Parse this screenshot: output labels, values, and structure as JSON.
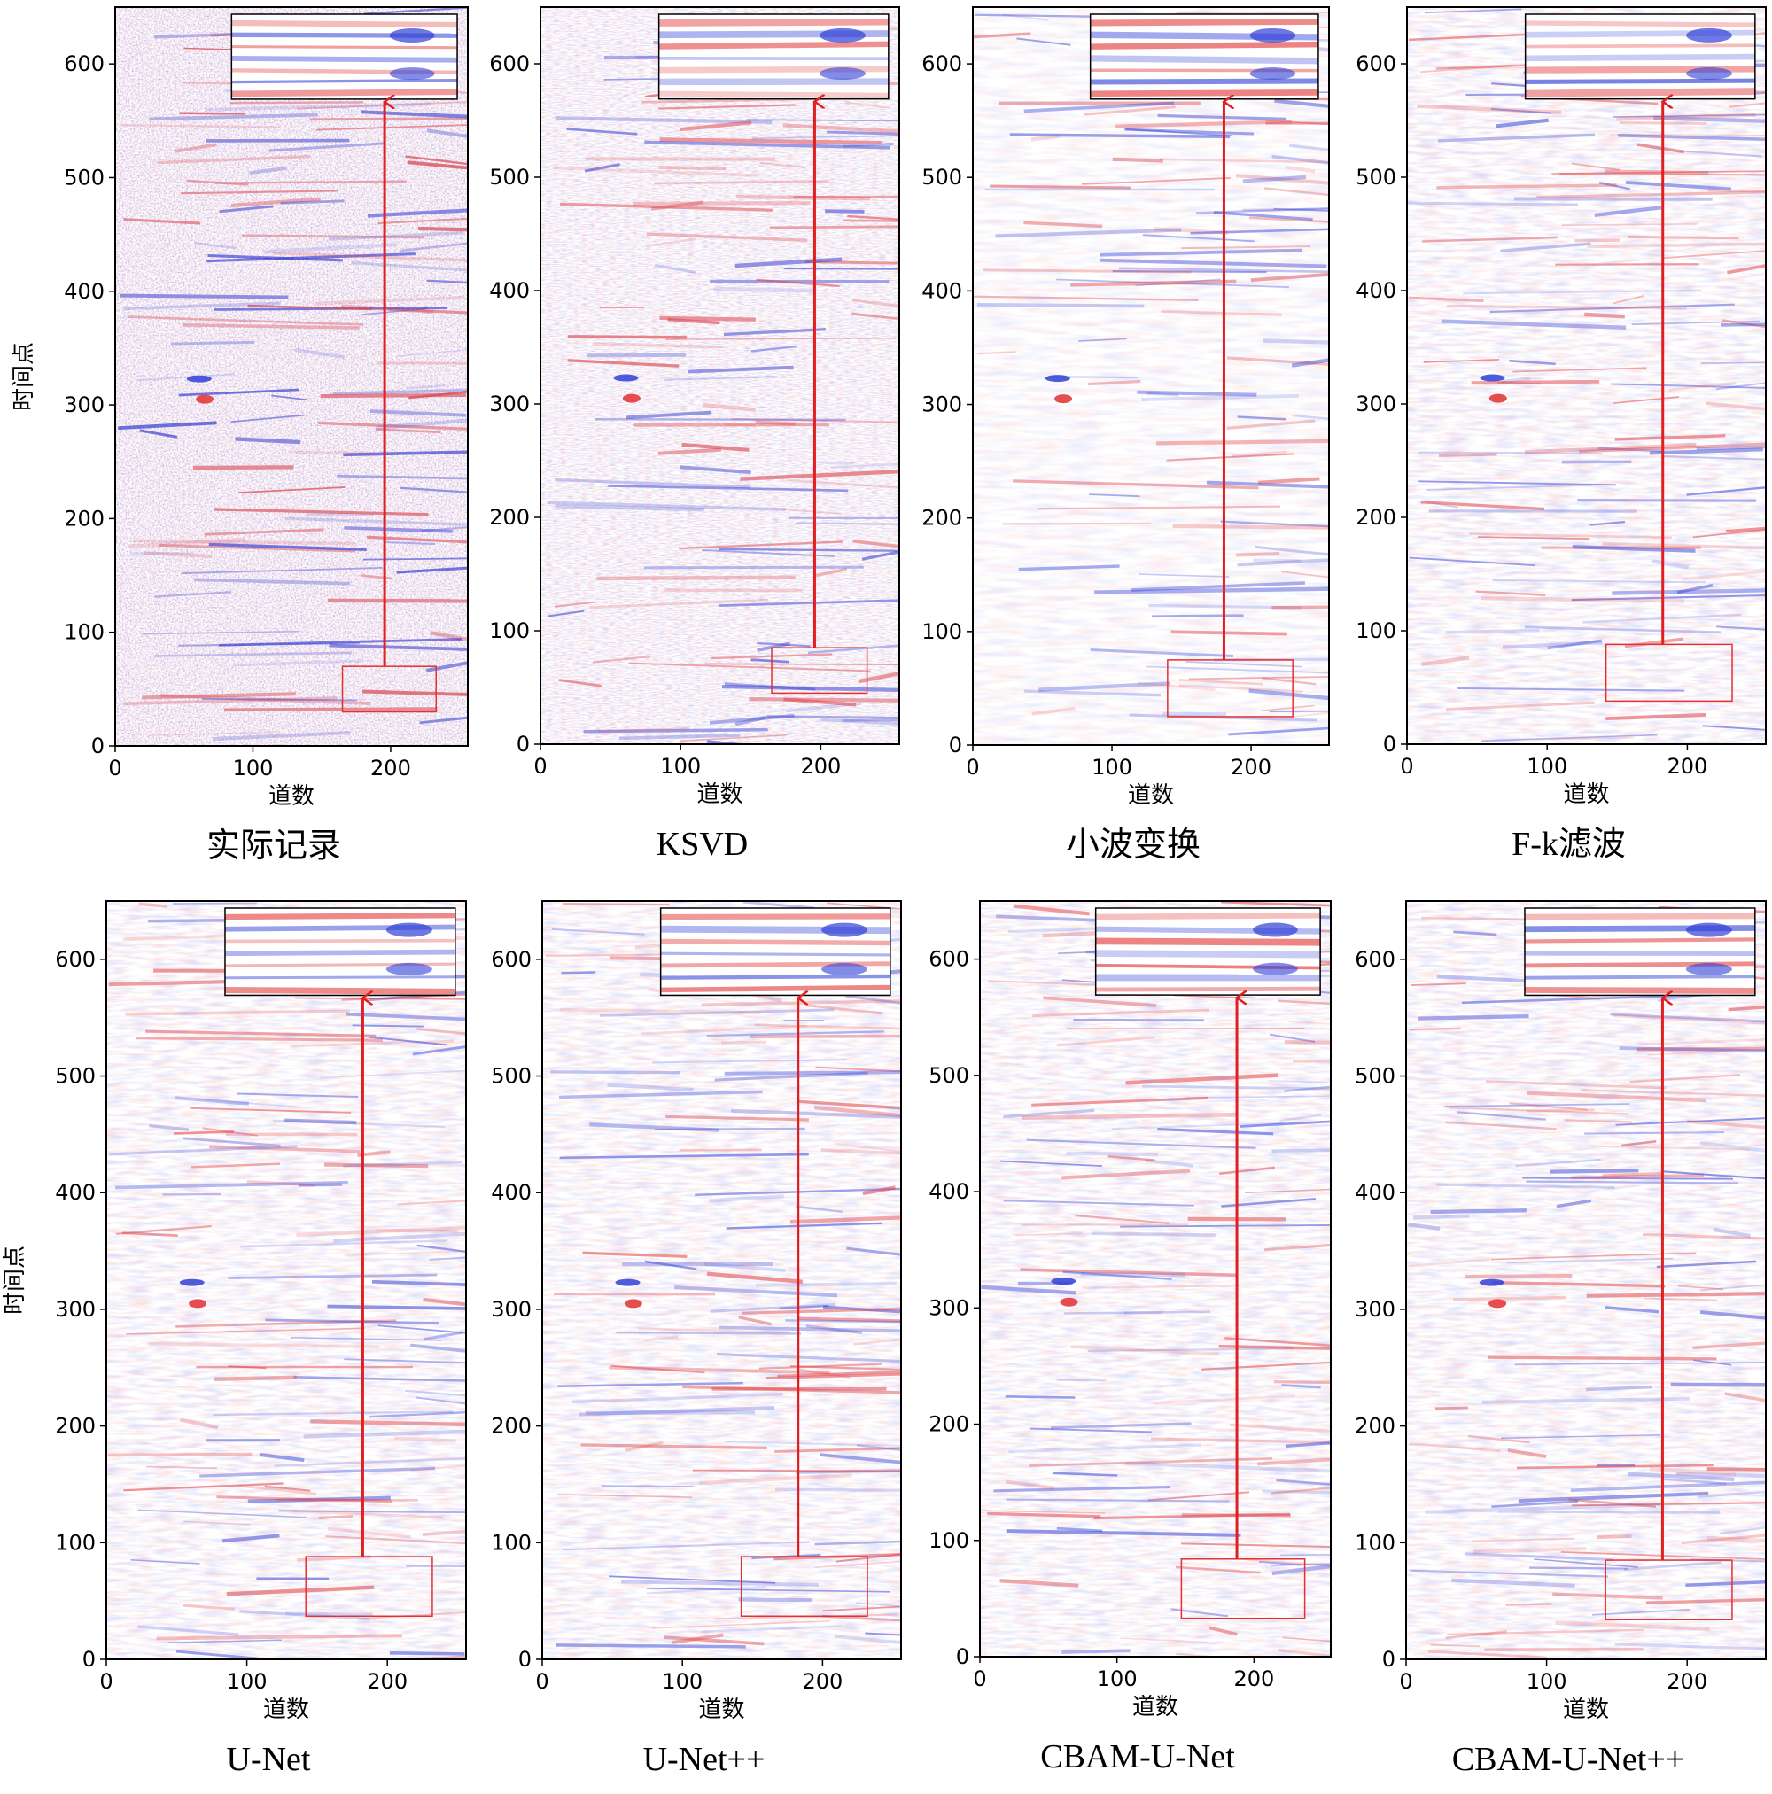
{
  "figure": {
    "background": "#ffffff"
  },
  "colors": {
    "positive": "#e23b3b",
    "negative": "#2f3fd6",
    "zoom_frame": "#000000",
    "source_frame": "#e53030",
    "arrow": "#e02020"
  },
  "chart_data": [
    {
      "type": "heatmap",
      "caption": "实际记录",
      "xlabel": "道数",
      "ylabel": "时间点",
      "xticks": [
        0,
        100,
        200
      ],
      "yticks": [
        0,
        100,
        200,
        300,
        400,
        500,
        600
      ],
      "xlim": [
        0,
        256
      ],
      "ylim": [
        0,
        650
      ],
      "colormap": "seismic",
      "noise": "high",
      "source_region": {
        "x": [
          165,
          233
        ],
        "y": [
          30,
          70
        ]
      },
      "inset": "zoomed view of source region",
      "features": {
        "anomaly": {
          "x": 65,
          "y": 305
        }
      }
    },
    {
      "type": "heatmap",
      "caption": "KSVD",
      "xlabel": "道数",
      "ylabel": "",
      "xticks": [
        0,
        100,
        200
      ],
      "yticks": [
        0,
        100,
        200,
        300,
        400,
        500,
        600
      ],
      "xlim": [
        0,
        256
      ],
      "ylim": [
        0,
        650
      ],
      "colormap": "seismic",
      "noise": "medium",
      "source_region": {
        "x": [
          165,
          233
        ],
        "y": [
          45,
          85
        ]
      },
      "inset": "zoomed view of source region",
      "features": {
        "anomaly": {
          "x": 65,
          "y": 305
        }
      }
    },
    {
      "type": "heatmap",
      "caption": "小波变换",
      "xlabel": "道数",
      "ylabel": "",
      "xticks": [
        0,
        100,
        200
      ],
      "yticks": [
        0,
        100,
        200,
        300,
        400,
        500,
        600
      ],
      "xlim": [
        0,
        256
      ],
      "ylim": [
        0,
        650
      ],
      "colormap": "seismic",
      "noise": "smooth",
      "source_region": {
        "x": [
          140,
          230
        ],
        "y": [
          25,
          75
        ]
      },
      "inset": "zoomed view of source region",
      "features": {
        "anomaly": {
          "x": 65,
          "y": 305
        }
      }
    },
    {
      "type": "heatmap",
      "caption": "F-k滤波",
      "xlabel": "道数",
      "ylabel": "",
      "xticks": [
        0,
        100,
        200
      ],
      "yticks": [
        0,
        100,
        200,
        300,
        400,
        500,
        600
      ],
      "xlim": [
        0,
        256
      ],
      "ylim": [
        0,
        650
      ],
      "colormap": "seismic",
      "noise": "low",
      "source_region": {
        "x": [
          142,
          232
        ],
        "y": [
          38,
          88
        ]
      },
      "inset": "zoomed view of source region",
      "features": {
        "anomaly": {
          "x": 65,
          "y": 305
        }
      }
    },
    {
      "type": "heatmap",
      "caption": "U-Net",
      "xlabel": "道数",
      "ylabel": "时间点",
      "xticks": [
        0,
        100,
        200
      ],
      "yticks": [
        0,
        100,
        200,
        300,
        400,
        500,
        600
      ],
      "xlim": [
        0,
        256
      ],
      "ylim": [
        0,
        650
      ],
      "colormap": "seismic",
      "noise": "low",
      "source_region": {
        "x": [
          142,
          232
        ],
        "y": [
          37,
          88
        ]
      },
      "inset": "zoomed view of source region",
      "features": {
        "anomaly": {
          "x": 65,
          "y": 305
        }
      }
    },
    {
      "type": "heatmap",
      "caption": "U-Net++",
      "xlabel": "道数",
      "ylabel": "",
      "xticks": [
        0,
        100,
        200
      ],
      "yticks": [
        0,
        100,
        200,
        300,
        400,
        500,
        600
      ],
      "xlim": [
        0,
        256
      ],
      "ylim": [
        0,
        650
      ],
      "colormap": "seismic",
      "noise": "low",
      "source_region": {
        "x": [
          142,
          232
        ],
        "y": [
          37,
          88
        ]
      },
      "inset": "zoomed view of source region",
      "features": {
        "anomaly": {
          "x": 65,
          "y": 305
        }
      }
    },
    {
      "type": "heatmap",
      "caption": "CBAM-U-Net",
      "xlabel": "道数",
      "ylabel": "",
      "xticks": [
        0,
        100,
        200
      ],
      "yticks": [
        0,
        100,
        200,
        300,
        400,
        500,
        600
      ],
      "xlim": [
        0,
        256
      ],
      "ylim": [
        0,
        650
      ],
      "colormap": "seismic",
      "noise": "low",
      "source_region": {
        "x": [
          147,
          237
        ],
        "y": [
          33,
          84
        ]
      },
      "inset": "zoomed view of source region",
      "features": {
        "anomaly": {
          "x": 65,
          "y": 305
        }
      }
    },
    {
      "type": "heatmap",
      "caption": "CBAM-U-Net++",
      "xlabel": "道数",
      "ylabel": "",
      "xticks": [
        0,
        100,
        200
      ],
      "yticks": [
        0,
        100,
        200,
        300,
        400,
        500,
        600
      ],
      "xlim": [
        0,
        256
      ],
      "ylim": [
        0,
        650
      ],
      "colormap": "seismic",
      "noise": "low",
      "source_region": {
        "x": [
          142,
          232
        ],
        "y": [
          34,
          85
        ]
      },
      "inset": "zoomed view of source region",
      "features": {
        "anomaly": {
          "x": 65,
          "y": 305
        }
      }
    }
  ]
}
